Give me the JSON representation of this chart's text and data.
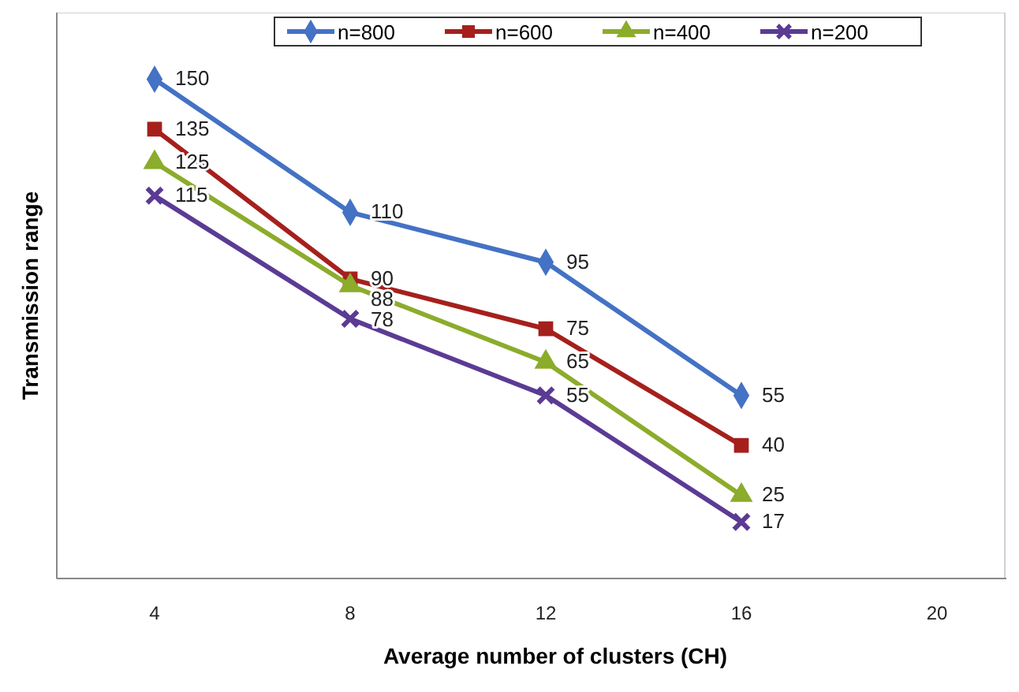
{
  "chart_data": {
    "type": "line",
    "xlabel": "Average number of clusters (CH)",
    "ylabel": "Transmission range",
    "categories": [
      "4",
      "8",
      "12",
      "16",
      "20"
    ],
    "ylim": [
      0,
      170
    ],
    "tick_labels": "x",
    "data_labels": true,
    "legend": "top",
    "series": [
      {
        "name": "n=800",
        "color": "#4472c4",
        "marker": "diamond",
        "values": [
          150,
          110,
          95,
          55,
          null
        ]
      },
      {
        "name": "n=600",
        "color": "#a5201c",
        "marker": "square",
        "values": [
          135,
          90,
          75,
          40,
          null
        ]
      },
      {
        "name": "n=400",
        "color": "#8cac2c",
        "marker": "triangle",
        "values": [
          125,
          88,
          65,
          25,
          null
        ]
      },
      {
        "name": "n=200",
        "color": "#5b3b94",
        "marker": "cross",
        "values": [
          115,
          78,
          55,
          17,
          null
        ]
      }
    ]
  }
}
